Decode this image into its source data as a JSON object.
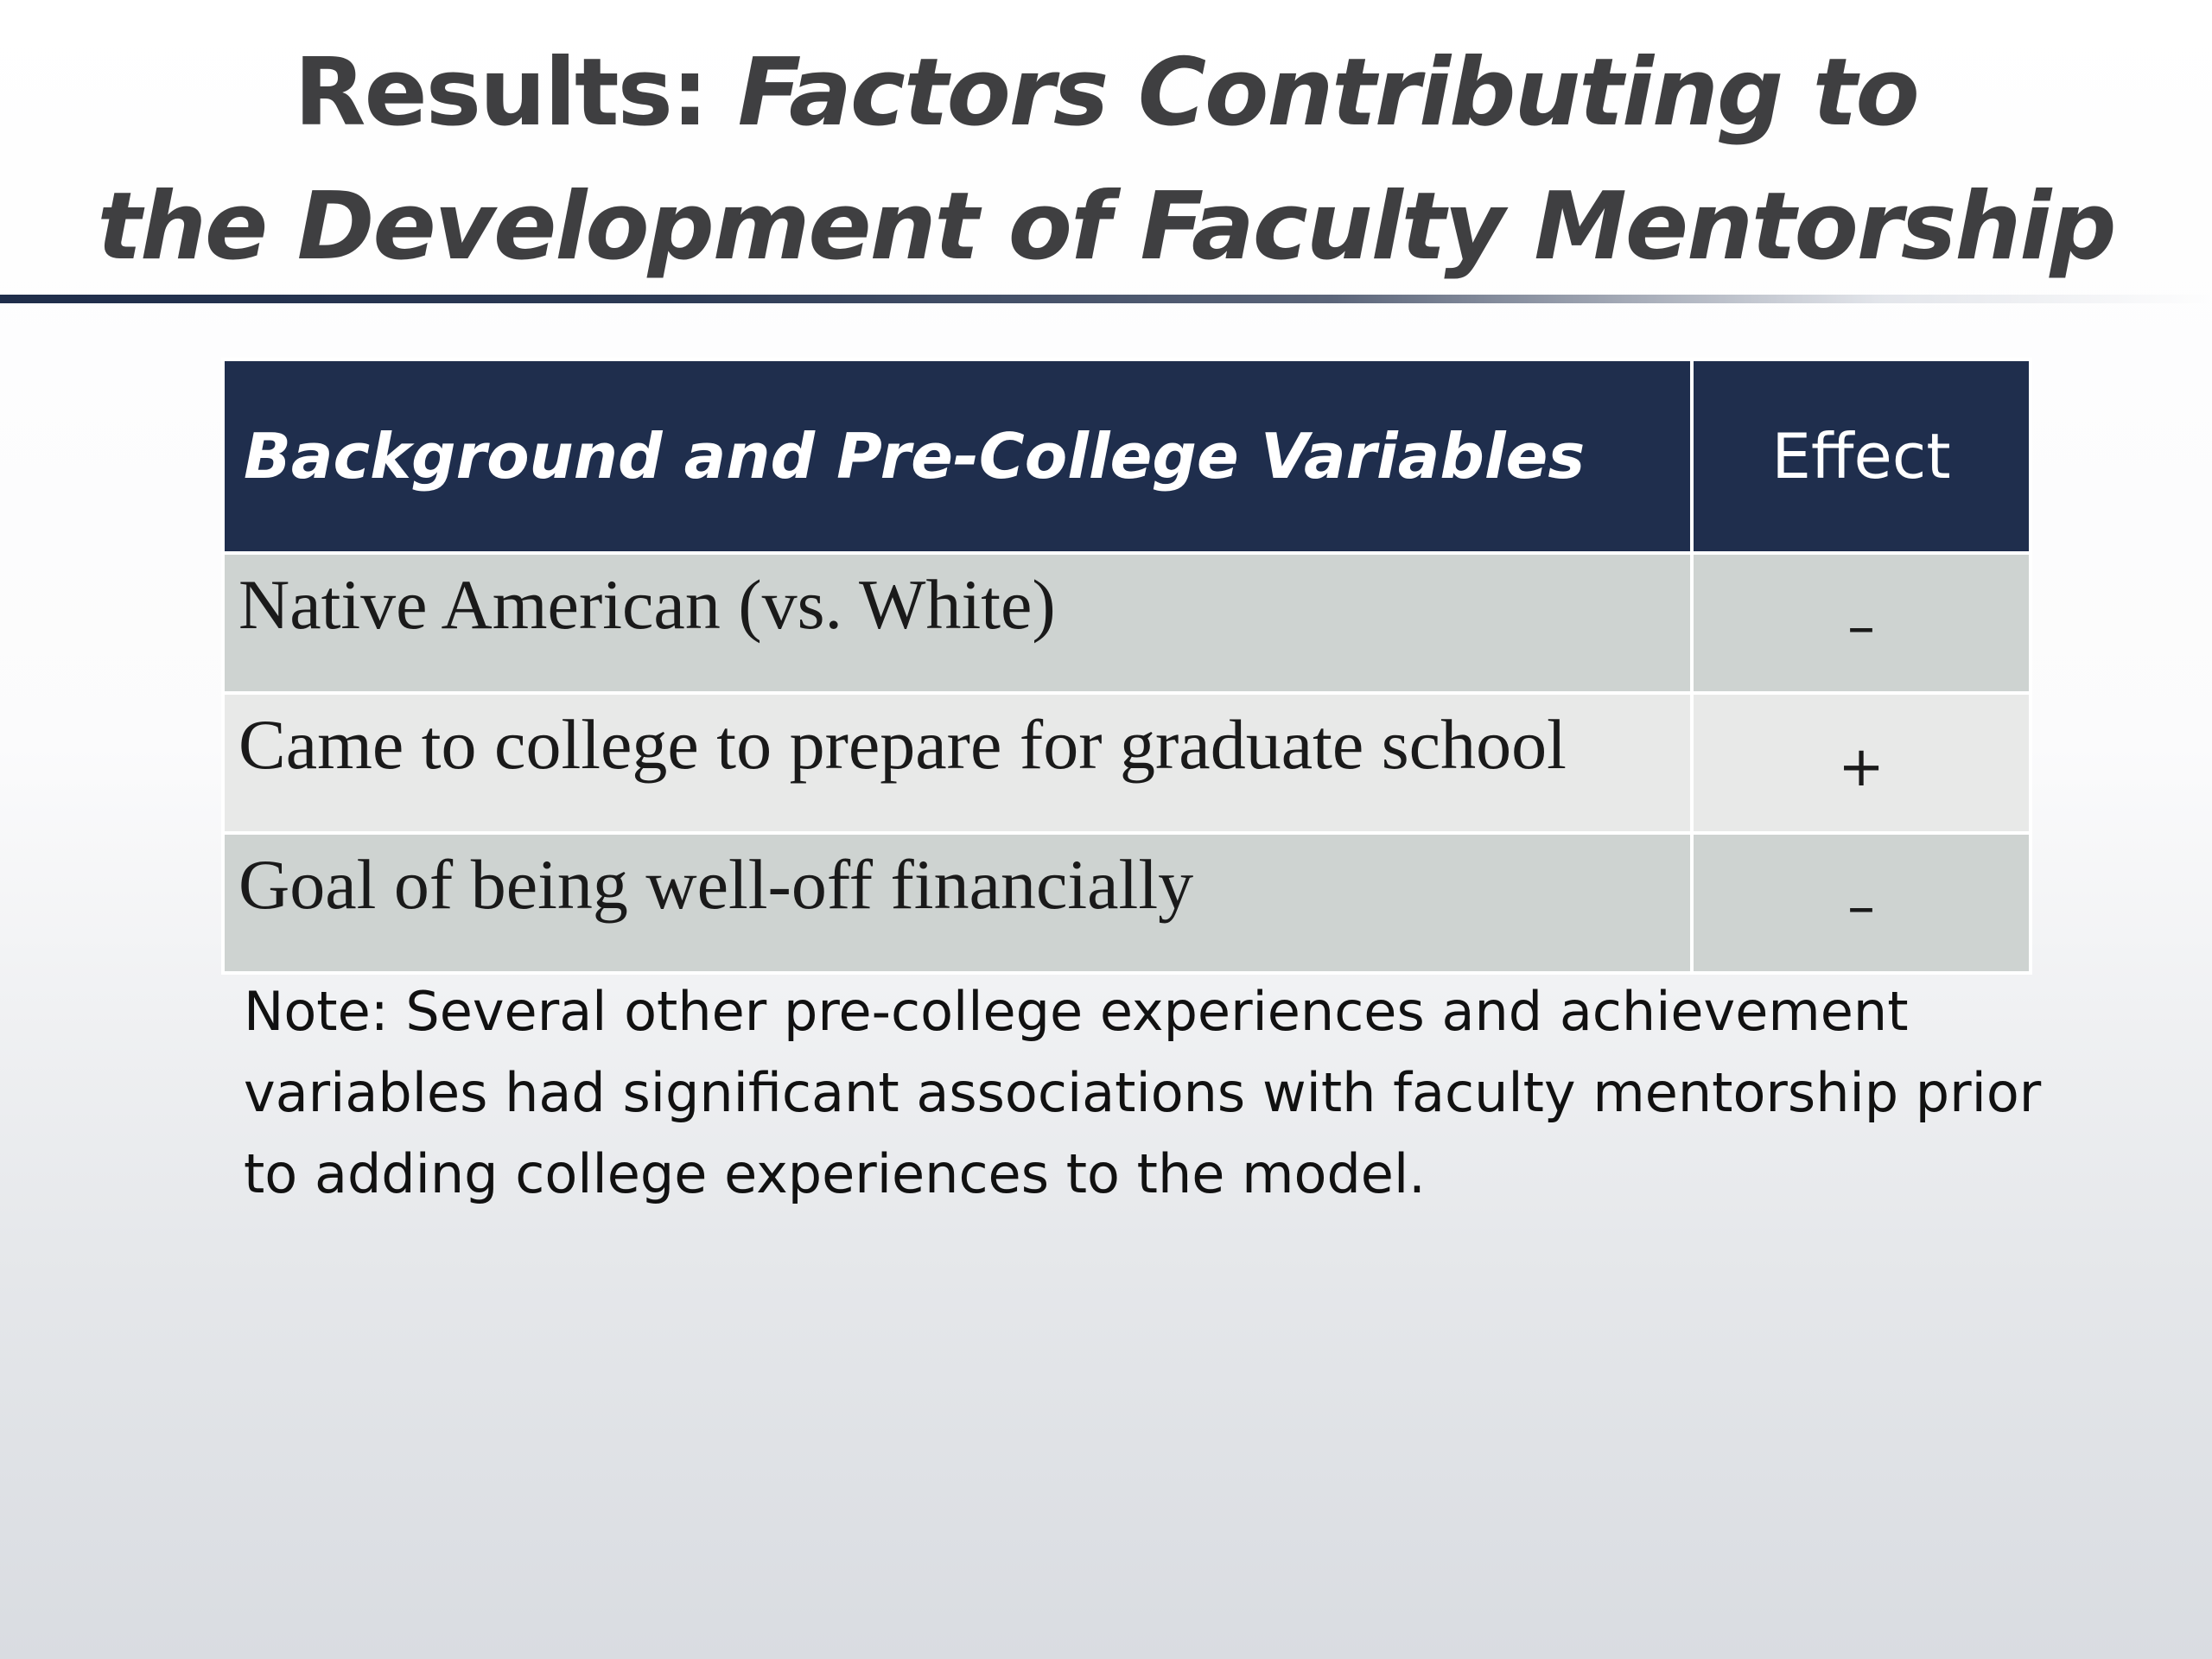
{
  "title": {
    "prefix": "Results: ",
    "italic_line1": "Factors Contributing to",
    "italic_line2": "the Development of Faculty Mentorship"
  },
  "table": {
    "headers": [
      "Background and Pre-College Variables",
      "Effect"
    ],
    "rows": [
      {
        "variable": "Native American (vs. White)",
        "effect": "–"
      },
      {
        "variable": "Came to college to prepare for graduate school",
        "effect": "+"
      },
      {
        "variable": "Goal of being well-off financially",
        "effect": "–"
      }
    ]
  },
  "note": "Note: Several other pre-college experiences and achievement variables had significant associations with faculty mentorship prior to adding college experiences to the model.",
  "colors": {
    "header_bg": "#1f2e4d",
    "row_odd": "#ced3d1",
    "row_even": "#e8e9e8",
    "title_text": "#3f3f41"
  }
}
